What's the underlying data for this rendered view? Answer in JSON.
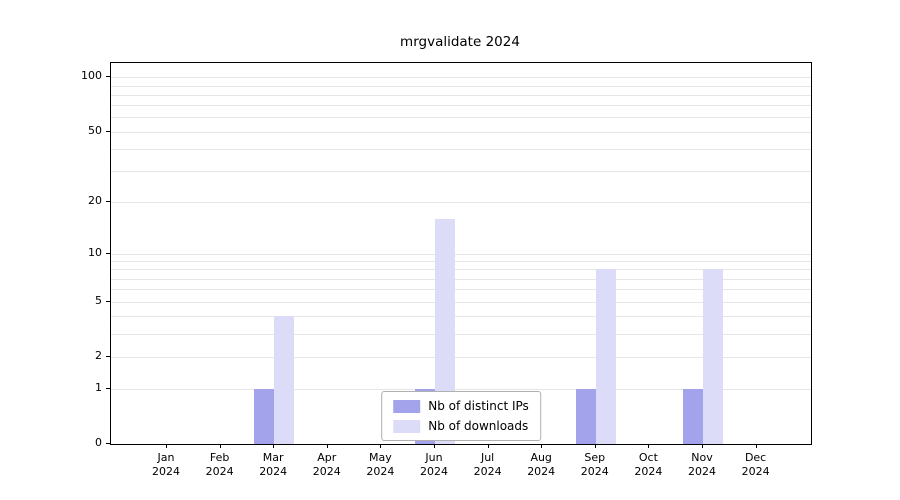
{
  "chart_data": {
    "type": "bar",
    "title": "mrgvalidate 2024",
    "categories": [
      "Jan 2024",
      "Feb 2024",
      "Mar 2024",
      "Apr 2024",
      "May 2024",
      "Jun 2024",
      "Jul 2024",
      "Aug 2024",
      "Sep 2024",
      "Oct 2024",
      "Nov 2024",
      "Dec 2024"
    ],
    "series": [
      {
        "name": "Nb of distinct IPs",
        "color": "#a3a3ec",
        "values": [
          0,
          0,
          1,
          0,
          0,
          1,
          0,
          0,
          1,
          0,
          1,
          0
        ]
      },
      {
        "name": "Nb of downloads",
        "color": "#dcdcf8",
        "values": [
          0,
          0,
          4,
          0,
          0,
          16,
          0,
          0,
          8,
          0,
          8,
          0
        ]
      }
    ],
    "yscale": "log1p",
    "ylim": [
      0,
      120
    ],
    "y_ticks": [
      0,
      1,
      2,
      5,
      10,
      20,
      50,
      100
    ],
    "y_gridlines": [
      1,
      2,
      3,
      4,
      5,
      6,
      7,
      8,
      9,
      10,
      20,
      30,
      40,
      50,
      60,
      70,
      80,
      90,
      100
    ],
    "grid": true,
    "legend_position": "lower center"
  }
}
